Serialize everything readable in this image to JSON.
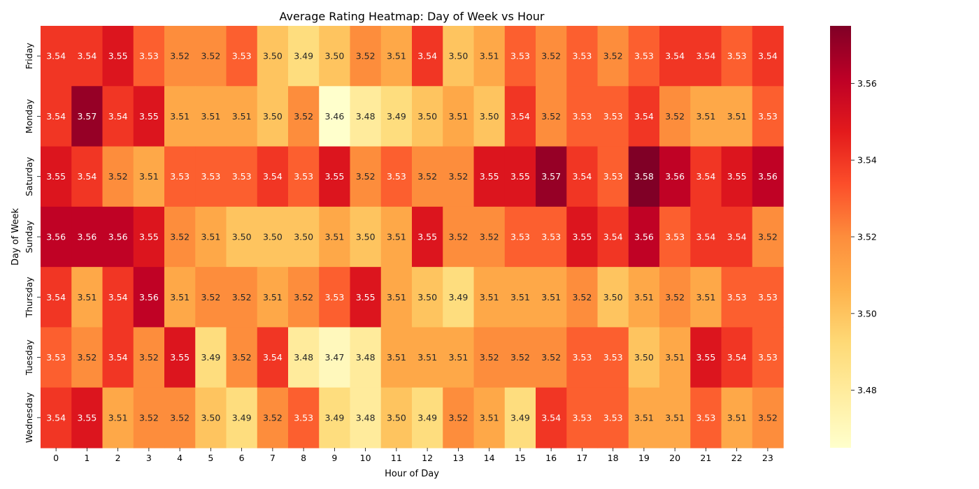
{
  "chart_data": {
    "type": "heatmap",
    "title": "Average Rating Heatmap: Day of Week vs Hour",
    "xlabel": "Hour of Day",
    "ylabel": "Day of Week",
    "x_categories": [
      "0",
      "1",
      "2",
      "3",
      "4",
      "5",
      "6",
      "7",
      "8",
      "9",
      "10",
      "11",
      "12",
      "13",
      "14",
      "15",
      "16",
      "17",
      "18",
      "19",
      "20",
      "21",
      "22",
      "23"
    ],
    "y_categories": [
      "Friday",
      "Monday",
      "Saturday",
      "Sunday",
      "Thursday",
      "Tuesday",
      "Wednesday"
    ],
    "values": [
      [
        3.54,
        3.54,
        3.55,
        3.53,
        3.52,
        3.52,
        3.53,
        3.5,
        3.49,
        3.5,
        3.52,
        3.51,
        3.54,
        3.5,
        3.51,
        3.53,
        3.52,
        3.53,
        3.52,
        3.53,
        3.54,
        3.54,
        3.53,
        3.54
      ],
      [
        3.54,
        3.57,
        3.54,
        3.55,
        3.51,
        3.51,
        3.51,
        3.5,
        3.52,
        3.46,
        3.48,
        3.49,
        3.5,
        3.51,
        3.5,
        3.54,
        3.52,
        3.53,
        3.53,
        3.54,
        3.52,
        3.51,
        3.51,
        3.53
      ],
      [
        3.55,
        3.54,
        3.52,
        3.51,
        3.53,
        3.53,
        3.53,
        3.54,
        3.53,
        3.55,
        3.52,
        3.53,
        3.52,
        3.52,
        3.55,
        3.55,
        3.57,
        3.54,
        3.53,
        3.58,
        3.56,
        3.54,
        3.55,
        3.56
      ],
      [
        3.56,
        3.56,
        3.56,
        3.55,
        3.52,
        3.51,
        3.5,
        3.5,
        3.5,
        3.51,
        3.5,
        3.51,
        3.55,
        3.52,
        3.52,
        3.53,
        3.53,
        3.55,
        3.54,
        3.56,
        3.53,
        3.54,
        3.54,
        3.52
      ],
      [
        3.54,
        3.51,
        3.54,
        3.56,
        3.51,
        3.52,
        3.52,
        3.51,
        3.52,
        3.53,
        3.55,
        3.51,
        3.5,
        3.49,
        3.51,
        3.51,
        3.51,
        3.52,
        3.5,
        3.51,
        3.52,
        3.51,
        3.53,
        3.53
      ],
      [
        3.53,
        3.52,
        3.54,
        3.52,
        3.55,
        3.49,
        3.52,
        3.54,
        3.48,
        3.47,
        3.48,
        3.51,
        3.51,
        3.51,
        3.52,
        3.52,
        3.52,
        3.53,
        3.53,
        3.5,
        3.51,
        3.55,
        3.54,
        3.53
      ],
      [
        3.54,
        3.55,
        3.51,
        3.52,
        3.52,
        3.5,
        3.49,
        3.52,
        3.53,
        3.49,
        3.48,
        3.5,
        3.49,
        3.52,
        3.51,
        3.49,
        3.54,
        3.53,
        3.53,
        3.51,
        3.51,
        3.53,
        3.51,
        3.52
      ]
    ],
    "colormap": "YlOrRd",
    "colorbar": {
      "range": [
        3.465,
        3.575
      ],
      "ticks": [
        3.48,
        3.5,
        3.52,
        3.54,
        3.56
      ],
      "tick_labels": [
        "3.48",
        "3.50",
        "3.52",
        "3.54",
        "3.56"
      ]
    },
    "annotations": true,
    "grid": false,
    "legend": "colorbar-right"
  }
}
